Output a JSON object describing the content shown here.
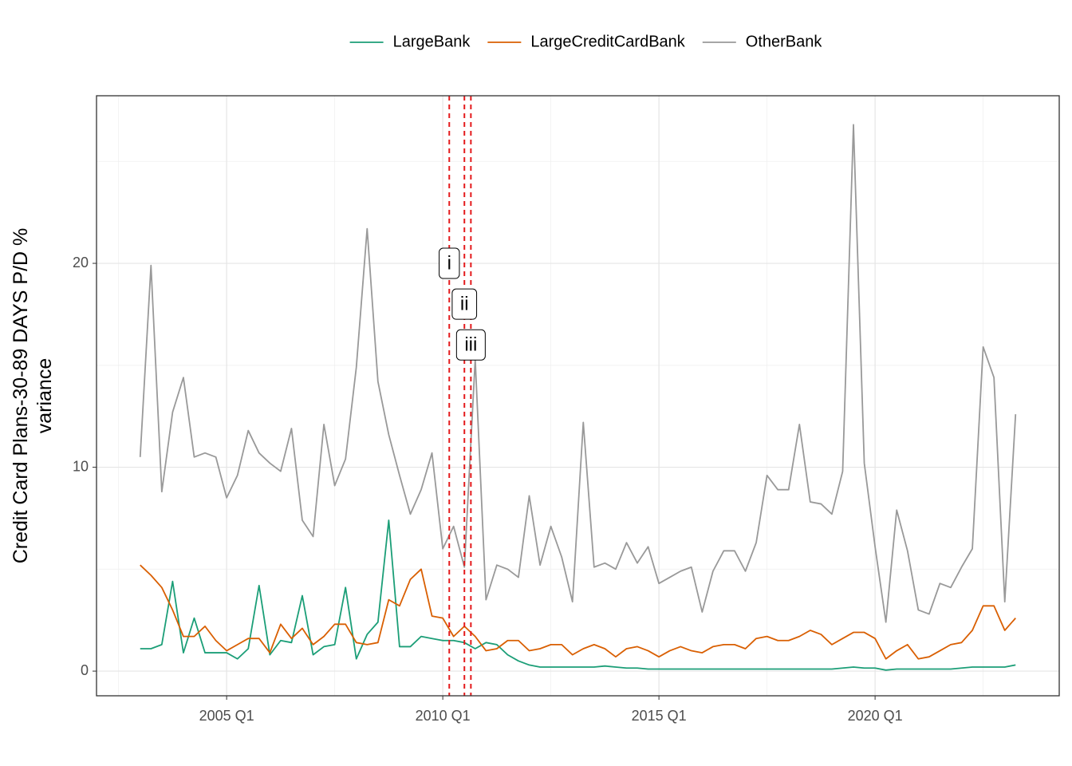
{
  "chart_data": {
    "type": "line",
    "ylabel": [
      "Credit Card Plans-30-89 DAYS P/D %",
      "variance"
    ],
    "x": [
      2003,
      2003.25,
      2003.5,
      2003.75,
      2004,
      2004.25,
      2004.5,
      2004.75,
      2005,
      2005.25,
      2005.5,
      2005.75,
      2006,
      2006.25,
      2006.5,
      2006.75,
      2007,
      2007.25,
      2007.5,
      2007.75,
      2008,
      2008.25,
      2008.5,
      2008.75,
      2009,
      2009.25,
      2009.5,
      2009.75,
      2010,
      2010.25,
      2010.5,
      2010.75,
      2011,
      2011.25,
      2011.5,
      2011.75,
      2012,
      2012.25,
      2012.5,
      2012.75,
      2013,
      2013.25,
      2013.5,
      2013.75,
      2014,
      2014.25,
      2014.5,
      2014.75,
      2015,
      2015.25,
      2015.5,
      2015.75,
      2016,
      2016.25,
      2016.5,
      2016.75,
      2017,
      2017.25,
      2017.5,
      2017.75,
      2018,
      2018.25,
      2018.5,
      2018.75,
      2019,
      2019.25,
      2019.5,
      2019.75,
      2020,
      2020.25,
      2020.5,
      2020.75,
      2021,
      2021.25,
      2021.5,
      2021.75,
      2022,
      2022.25,
      2022.5,
      2022.75,
      2023,
      2023.25
    ],
    "series": [
      {
        "name": "LargeBank",
        "color": "#1b9e77",
        "values": [
          1.1,
          1.1,
          1.3,
          4.4,
          0.9,
          2.6,
          0.9,
          0.9,
          0.9,
          0.6,
          1.1,
          4.2,
          0.8,
          1.5,
          1.4,
          3.7,
          0.8,
          1.2,
          1.3,
          4.1,
          0.6,
          1.8,
          2.4,
          7.4,
          1.2,
          1.2,
          1.7,
          1.6,
          1.5,
          1.5,
          1.4,
          1.1,
          1.4,
          1.3,
          0.8,
          0.5,
          0.3,
          0.2,
          0.2,
          0.2,
          0.2,
          0.2,
          0.2,
          0.25,
          0.2,
          0.15,
          0.15,
          0.1,
          0.1,
          0.1,
          0.1,
          0.1,
          0.1,
          0.1,
          0.1,
          0.1,
          0.1,
          0.1,
          0.1,
          0.1,
          0.1,
          0.1,
          0.1,
          0.1,
          0.1,
          0.15,
          0.2,
          0.15,
          0.15,
          0.05,
          0.1,
          0.1,
          0.1,
          0.1,
          0.1,
          0.1,
          0.15,
          0.2,
          0.2,
          0.2,
          0.2,
          0.3
        ]
      },
      {
        "name": "LargeCreditCardBank",
        "color": "#d95f02",
        "values": [
          5.2,
          4.7,
          4.1,
          3.0,
          1.7,
          1.7,
          2.2,
          1.5,
          1.0,
          1.3,
          1.6,
          1.6,
          0.9,
          2.3,
          1.6,
          2.1,
          1.3,
          1.7,
          2.3,
          2.3,
          1.4,
          1.3,
          1.4,
          3.5,
          3.2,
          4.5,
          5.0,
          2.7,
          2.6,
          1.7,
          2.2,
          1.7,
          1.0,
          1.1,
          1.5,
          1.5,
          1.0,
          1.1,
          1.3,
          1.3,
          0.8,
          1.1,
          1.3,
          1.1,
          0.7,
          1.1,
          1.2,
          1.0,
          0.7,
          1.0,
          1.2,
          1.0,
          0.9,
          1.2,
          1.3,
          1.3,
          1.1,
          1.6,
          1.7,
          1.5,
          1.5,
          1.7,
          2.0,
          1.8,
          1.3,
          1.6,
          1.9,
          1.9,
          1.6,
          0.6,
          1.0,
          1.3,
          0.6,
          0.7,
          1.0,
          1.3,
          1.4,
          2.0,
          3.2,
          3.2,
          2.0,
          2.6
        ]
      },
      {
        "name": "OtherBank",
        "color": "#999999",
        "values": [
          10.5,
          19.9,
          8.8,
          12.7,
          14.4,
          10.5,
          10.7,
          10.5,
          8.5,
          9.6,
          11.8,
          10.7,
          10.2,
          9.8,
          11.9,
          7.4,
          6.6,
          12.1,
          9.1,
          10.4,
          14.9,
          21.7,
          14.2,
          11.6,
          9.6,
          7.7,
          8.9,
          10.7,
          6.0,
          7.1,
          5.1,
          15.3,
          3.5,
          5.2,
          5.0,
          4.6,
          8.6,
          5.2,
          7.1,
          5.6,
          3.4,
          12.2,
          5.1,
          5.3,
          5.0,
          6.3,
          5.3,
          6.1,
          4.3,
          4.6,
          4.9,
          5.1,
          2.9,
          4.9,
          5.9,
          5.9,
          4.9,
          6.3,
          9.6,
          8.9,
          8.9,
          12.1,
          8.3,
          8.2,
          7.7,
          9.8,
          26.8,
          10.2,
          6.1,
          2.4,
          7.9,
          5.9,
          3.0,
          2.8,
          4.3,
          4.1,
          5.1,
          6.0,
          15.9,
          14.4,
          3.4,
          12.6
        ]
      }
    ],
    "annotations": [
      {
        "x": 2010.15,
        "y": 20,
        "label": "i"
      },
      {
        "x": 2010.5,
        "y": 18,
        "label": "ii"
      },
      {
        "x": 2010.65,
        "y": 16,
        "label": "iii"
      }
    ],
    "annotation_line_color": "#e41a1c",
    "xlim": [
      2001.99,
      2024.26
    ],
    "xticks": [
      {
        "value": 2005,
        "label": "2005 Q1"
      },
      {
        "value": 2010,
        "label": "2010 Q1"
      },
      {
        "value": 2015,
        "label": "2015 Q1"
      },
      {
        "value": 2020,
        "label": "2020 Q1"
      }
    ],
    "x_minor_ticks": [
      2002.5,
      2007.5,
      2012.5,
      2017.5,
      2022.5
    ],
    "ylim": [
      -1.21,
      28.22
    ],
    "yticks": [
      0,
      10,
      20
    ],
    "y_minor_ticks": [
      5,
      15,
      25
    ],
    "grid": true,
    "legend_position": "top"
  }
}
